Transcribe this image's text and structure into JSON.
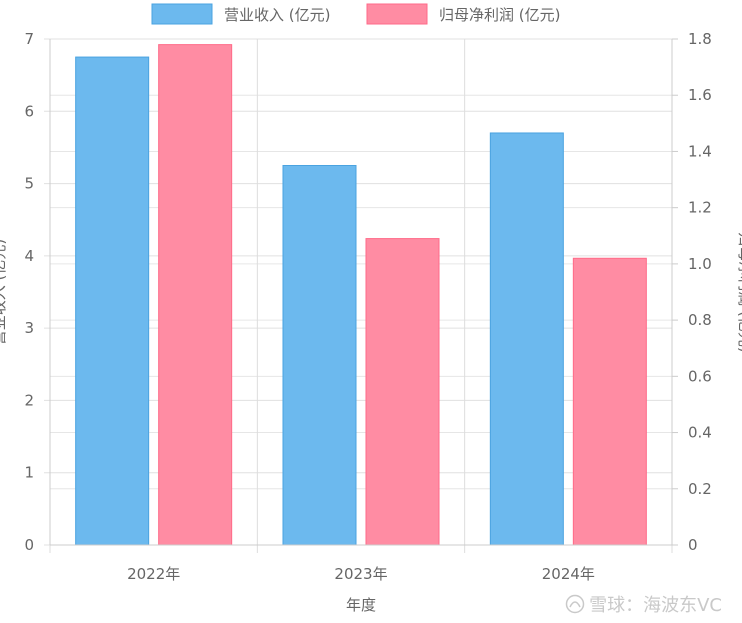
{
  "chart_data": {
    "type": "bar",
    "categories": [
      "2022年",
      "2023年",
      "2024年"
    ],
    "xlabel": "年度",
    "series": [
      {
        "name": "营业收入 (亿元)",
        "axis": "left",
        "color": "#6cb9ee",
        "border": "#4aa3e0",
        "values": [
          6.75,
          5.25,
          5.7
        ]
      },
      {
        "name": "归母净利润 (亿元)",
        "axis": "right",
        "color": "#ff8ca3",
        "border": "#ff6a88",
        "values": [
          1.78,
          1.09,
          1.02
        ]
      }
    ],
    "y_left": {
      "label": "营业收入 (亿元)",
      "range": [
        0,
        7
      ],
      "ticks": [
        "0",
        "1",
        "2",
        "3",
        "4",
        "5",
        "6",
        "7"
      ]
    },
    "y_right": {
      "label": "归母净利润 (亿元)",
      "range": [
        0,
        1.8
      ],
      "ticks": [
        "0",
        "0.2",
        "0.4",
        "0.6",
        "0.8",
        "1.0",
        "1.2",
        "1.4",
        "1.6",
        "1.8"
      ]
    },
    "legend_position": "top",
    "grid": true
  },
  "watermark": {
    "text": "雪球：海波东VC",
    "icon": "snowball-icon"
  }
}
